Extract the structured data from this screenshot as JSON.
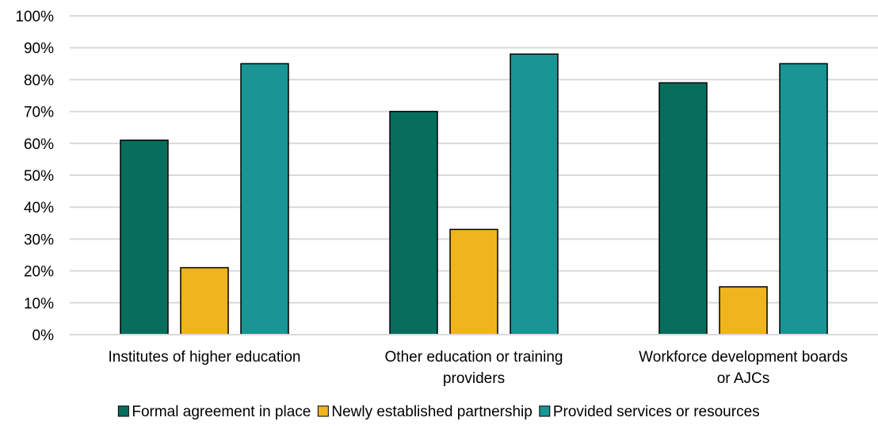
{
  "chart_data": {
    "type": "bar",
    "categories": [
      [
        "Institutes of higher education"
      ],
      [
        "Other education or training",
        "providers"
      ],
      [
        "Workforce development boards",
        "or AJCs"
      ]
    ],
    "series": [
      {
        "name": "Formal agreement in place",
        "color": "#076e5e",
        "values": [
          61,
          70,
          79
        ]
      },
      {
        "name": "Newly established partnership",
        "color": "#f0b51c",
        "values": [
          21,
          33,
          15
        ]
      },
      {
        "name": "Provided services or resources",
        "color": "#189594",
        "values": [
          85,
          88,
          85
        ]
      }
    ],
    "yticks": [
      "0%",
      "10%",
      "20%",
      "30%",
      "40%",
      "50%",
      "60%",
      "70%",
      "80%",
      "90%",
      "100%"
    ],
    "ylim": [
      0,
      100
    ],
    "grid": true,
    "legend_position": "bottom"
  }
}
